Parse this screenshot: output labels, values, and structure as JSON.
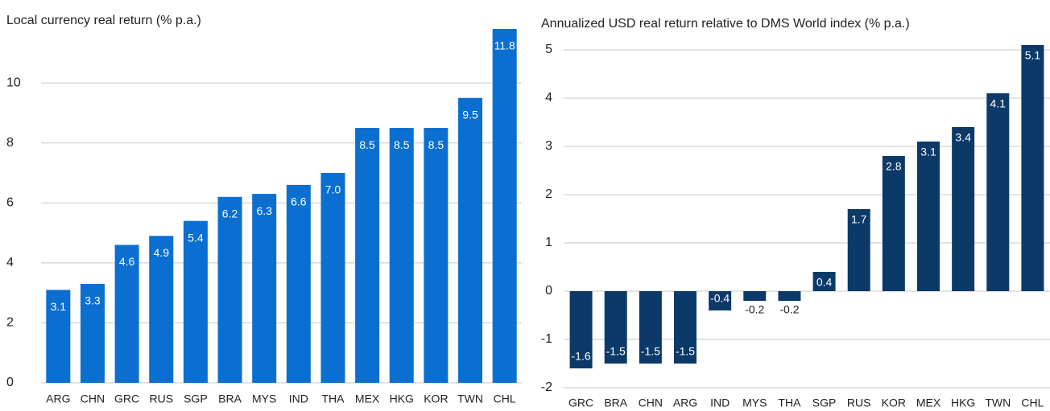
{
  "chart_data": [
    {
      "type": "bar",
      "title": "Local currency real return (% p.a.)",
      "categories": [
        "ARG",
        "CHN",
        "GRC",
        "RUS",
        "SGP",
        "BRA",
        "MYS",
        "IND",
        "THA",
        "MEX",
        "HKG",
        "KOR",
        "TWN",
        "CHL"
      ],
      "values": [
        3.1,
        3.3,
        4.6,
        4.9,
        5.4,
        6.2,
        6.3,
        6.6,
        7.0,
        8.5,
        8.5,
        8.5,
        9.5,
        11.8
      ],
      "value_labels": [
        "3.1",
        "3.3",
        "4.6",
        "4.9",
        "5.4",
        "6.2",
        "6.3",
        "6.6",
        "7.0",
        "8.5",
        "8.5",
        "8.5",
        "9.5",
        "11.8"
      ],
      "color": "#0a6fd0",
      "ylim": [
        0,
        11.8
      ],
      "yticks": [
        0,
        2,
        4,
        6,
        8,
        10
      ],
      "grid": true
    },
    {
      "type": "bar",
      "title": "Annualized USD real return relative to DMS World index (% p.a.)",
      "categories": [
        "GRC",
        "BRA",
        "CHN",
        "ARG",
        "IND",
        "MYS",
        "THA",
        "SGP",
        "RUS",
        "KOR",
        "MEX",
        "HKG",
        "TWN",
        "CHL"
      ],
      "values": [
        -1.6,
        -1.5,
        -1.5,
        -1.5,
        -0.4,
        -0.2,
        -0.2,
        0.4,
        1.7,
        2.8,
        3.1,
        3.4,
        4.1,
        5.1
      ],
      "color": "#0b3a68",
      "ylim": [
        -2,
        5.1
      ],
      "yticks": [
        -2,
        -1,
        0,
        1,
        2,
        3,
        4,
        5
      ],
      "grid": true
    }
  ]
}
